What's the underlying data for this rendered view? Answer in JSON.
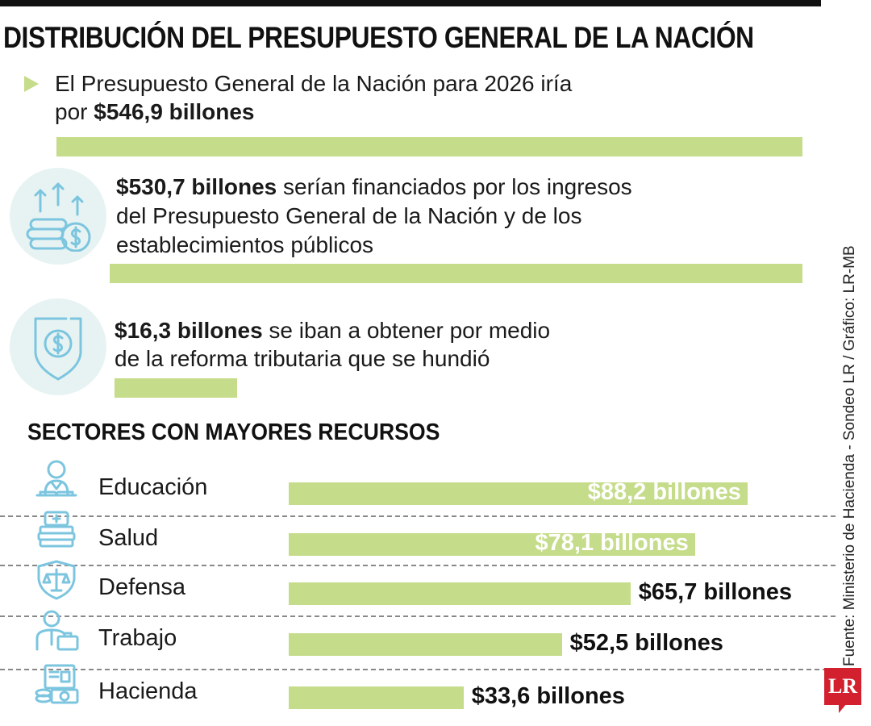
{
  "header": {
    "title": "DISTRIBUCIÓN DEL PRESUPUESTO GENERAL DE LA NACIÓN"
  },
  "total": {
    "line1": "El Presupuesto General de la Nación para 2026 iría",
    "prefix": "por ",
    "amount": "$546,9 billones",
    "value": 546.9
  },
  "financed": {
    "amount": "$530,7 billones",
    "line1_rest": " serían financiados por los ingresos",
    "line2": "del Presupuesto General de la Nación y de los",
    "line3": "establecimientos públicos",
    "value": 530.7,
    "icon": "coins-arrows-up-icon"
  },
  "reform": {
    "amount": "$16,3 billones",
    "line1_rest": " se iban a obtener por medio",
    "line2": "de la reforma tributaria que se hundió",
    "value": 16.3,
    "icon": "shield-dollar-icon"
  },
  "chart_data": {
    "type": "bar",
    "title": "SECTORES CON MAYORES RECURSOS",
    "orientation": "horizontal",
    "categories": [
      "Educación",
      "Salud",
      "Defensa",
      "Trabajo",
      "Hacienda"
    ],
    "values": [
      88.2,
      78.1,
      65.7,
      52.5,
      33.6
    ],
    "data_labels": [
      "$88,2 billones",
      "$78,1 billones",
      "$65,7 billones",
      "$52,5 billones",
      "$33,6 billones"
    ],
    "icons": [
      "teacher-icon",
      "medical-books-icon",
      "justice-shield-icon",
      "worker-briefcase-icon",
      "finance-document-icon"
    ],
    "bar_color": "#c5dc8a",
    "unit": "billones"
  },
  "footer": {
    "source": "Fuente: Ministerio de Hacienda - Sondeo LR / Gráfico: LR-MB",
    "logo": "LR"
  },
  "colors": {
    "accent_green": "#c5dc8a",
    "icon_blue": "#7cc5df",
    "icon_bg": "#e7f3f3",
    "logo_red": "#d3202f"
  }
}
